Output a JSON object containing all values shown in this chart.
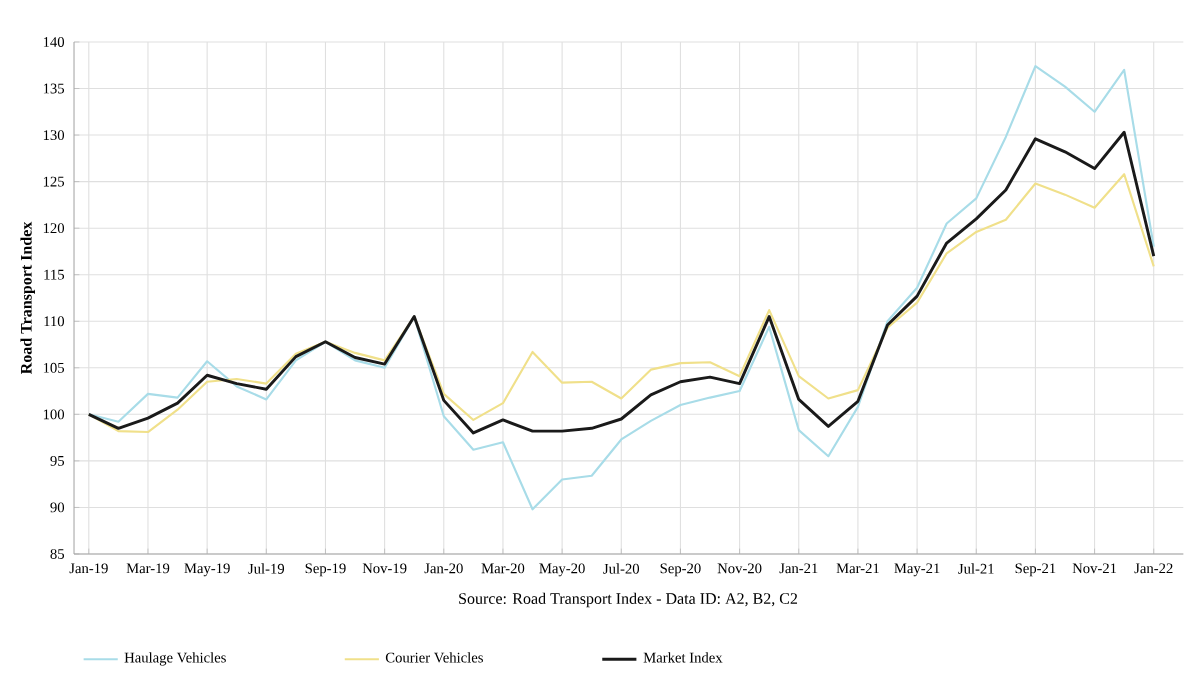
{
  "chart_data": {
    "type": "line",
    "ylabel": "Road Transport Index",
    "categories": [
      "Jan-19",
      null,
      "Mar-19",
      null,
      "May-19",
      null,
      "Jul-19",
      null,
      "Sep-19",
      null,
      "Nov-19",
      null,
      "Jan-20",
      null,
      "Mar-20",
      null,
      "May-20",
      null,
      "Jul-20",
      null,
      "Sep-20",
      null,
      "Nov-20",
      null,
      "Jan-21",
      null,
      "Mar-21",
      null,
      "May-21",
      null,
      "Jul-21",
      null,
      "Sep-21",
      null,
      "Nov-21",
      null,
      "Jan-22"
    ],
    "series": [
      {
        "name": "Haulage Vehicles",
        "color": "#a8dce8",
        "values": [
          100,
          99.2,
          102.2,
          101.8,
          105.7,
          103,
          101.6,
          105.8,
          107.8,
          105.8,
          105,
          110.5,
          99.8,
          96.2,
          97,
          89.8,
          93,
          93.4,
          97.3,
          99.3,
          101,
          101.8,
          102.5,
          109.4,
          98.3,
          95.5,
          100.8,
          110,
          113.6,
          120.5,
          123.2,
          129.8,
          137.4,
          135.2,
          132.5,
          137,
          118
        ]
      },
      {
        "name": "Courier Vehicles",
        "color": "#f0e08a",
        "values": [
          100,
          98.2,
          98.1,
          100.5,
          103.5,
          103.8,
          103.3,
          106.5,
          107.8,
          106.6,
          105.8,
          110.5,
          102.2,
          99.4,
          101.2,
          106.7,
          103.4,
          103.5,
          101.7,
          104.8,
          105.5,
          105.6,
          104.1,
          111.2,
          104.1,
          101.7,
          102.6,
          109.3,
          112,
          117.3,
          119.6,
          120.9,
          124.8,
          123.6,
          122.2,
          125.8,
          115.9
        ]
      },
      {
        "name": "Market Index",
        "color": "#1a1a1a",
        "values": [
          100,
          98.5,
          99.6,
          101.2,
          104.2,
          103.3,
          102.7,
          106.2,
          107.8,
          106.1,
          105.4,
          110.5,
          101.5,
          98,
          99.4,
          98.2,
          98.2,
          98.5,
          99.5,
          102.1,
          103.5,
          104,
          103.3,
          110.5,
          101.6,
          98.7,
          101.4,
          109.6,
          112.7,
          118.4,
          121,
          124.1,
          129.6,
          128.2,
          126.4,
          130.3,
          117
        ]
      }
    ],
    "ylim": [
      85,
      140
    ],
    "yticks": [
      85,
      90,
      95,
      100,
      105,
      110,
      115,
      120,
      125,
      130,
      135,
      140
    ],
    "grid": true,
    "legend": "bottom",
    "line_style": "solid",
    "annotations": [
      "Source: Road Transport Index - Data ID: A2, B2, C2"
    ]
  }
}
